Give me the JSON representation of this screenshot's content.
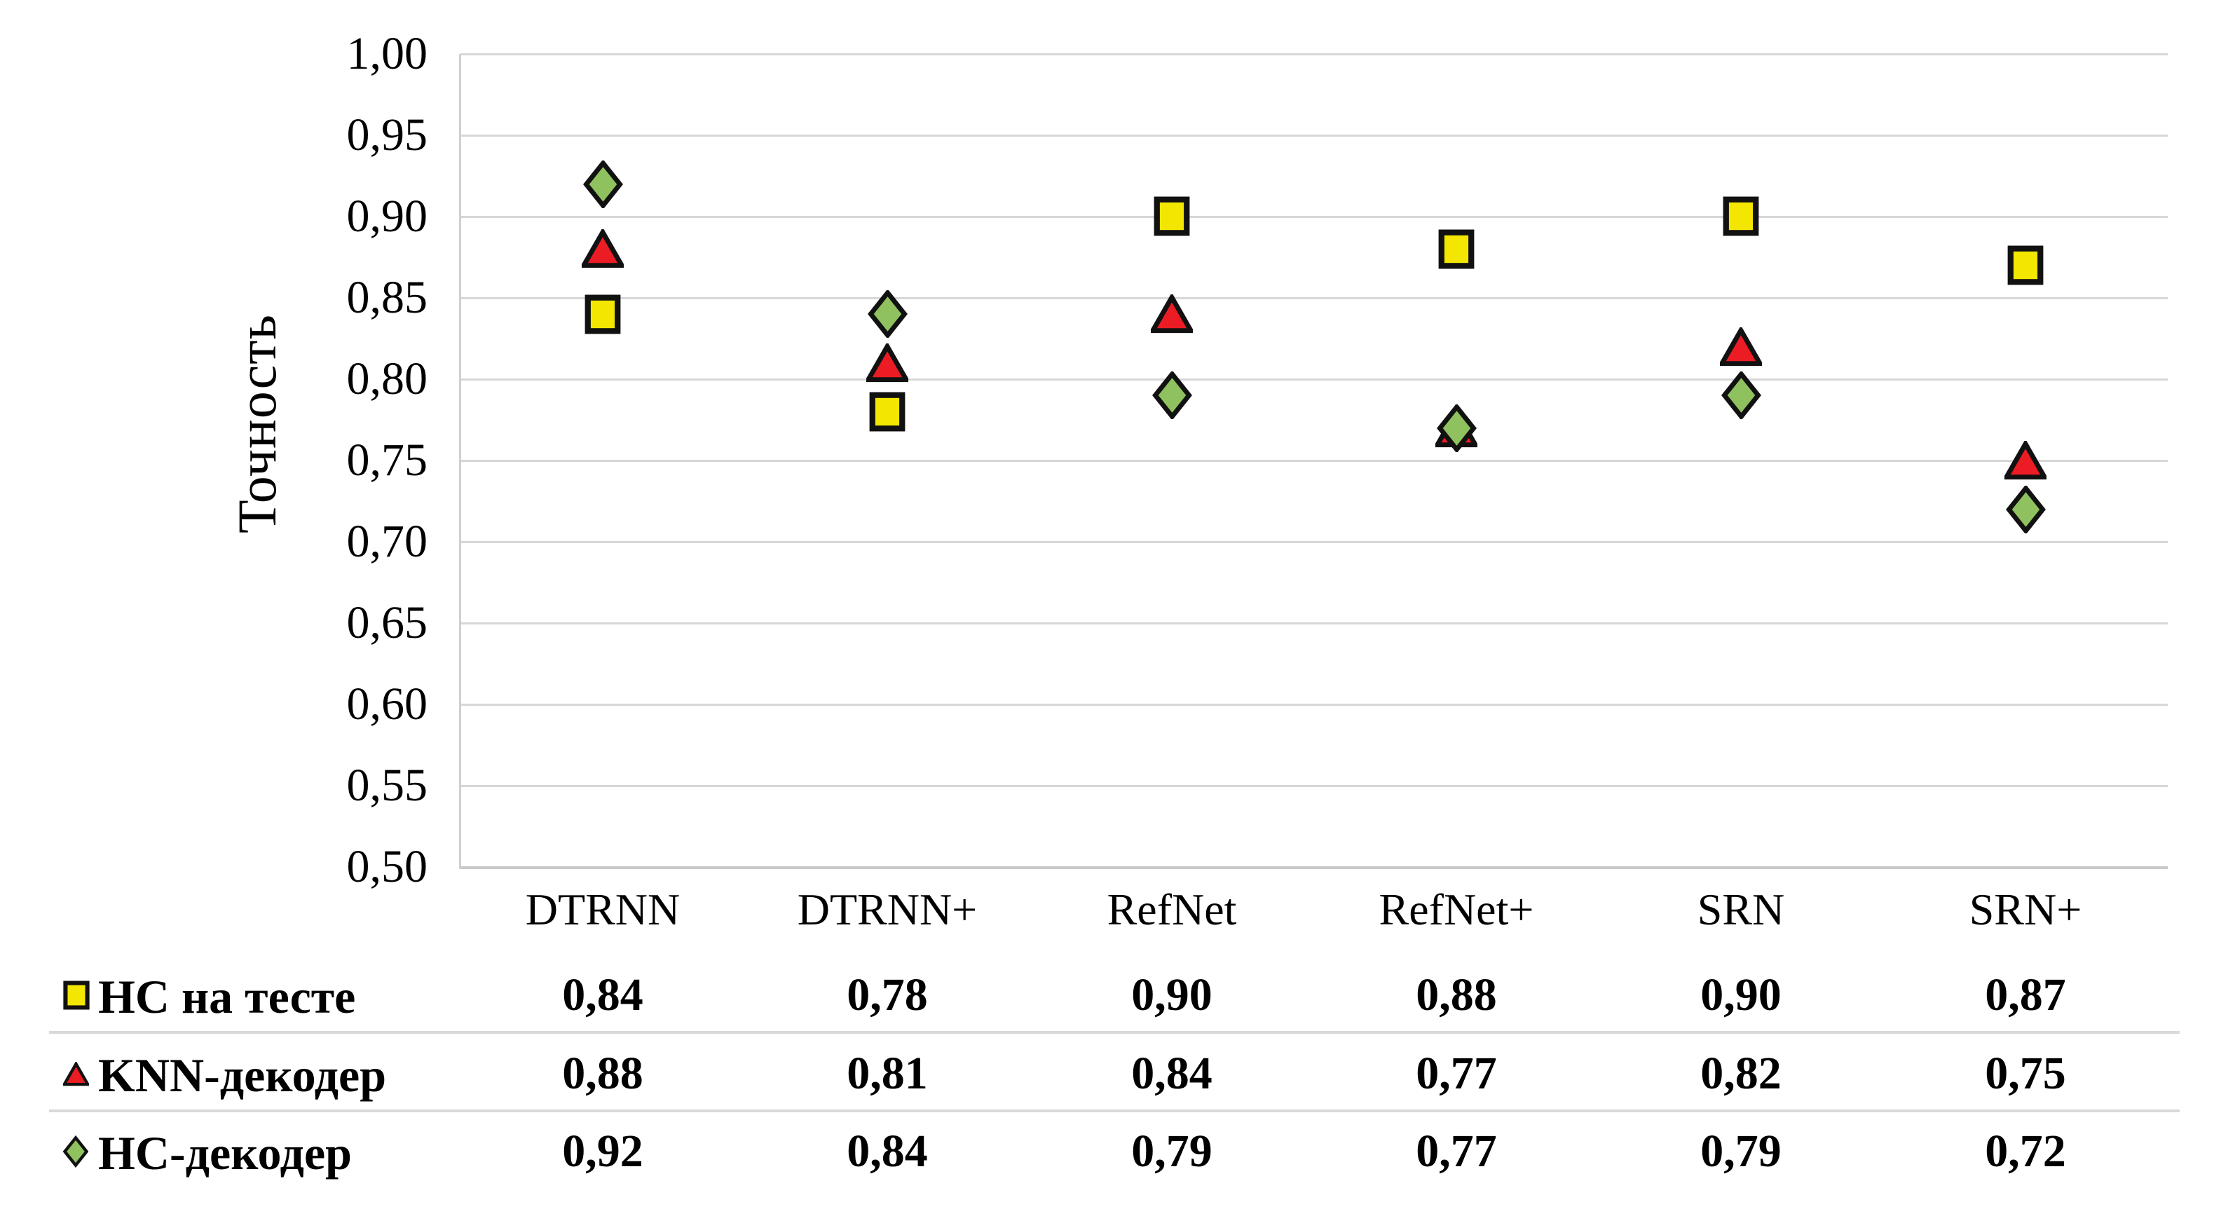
{
  "chart_data": {
    "type": "scatter",
    "title": "",
    "xlabel": "",
    "ylabel": "Точность",
    "categories": [
      "DTRNN",
      "DTRNN+",
      "RefNet",
      "RefNet+",
      "SRN",
      "SRN+"
    ],
    "series": [
      {
        "name": "НС на тесте",
        "marker": "square",
        "color": "#f3e600",
        "values": [
          0.84,
          0.78,
          0.9,
          0.88,
          0.9,
          0.87
        ],
        "display": [
          "0,84",
          "0,78",
          "0,90",
          "0,88",
          "0,90",
          "0,87"
        ]
      },
      {
        "name": "KNN-декодер",
        "marker": "triangle",
        "color": "#ec1c24",
        "values": [
          0.88,
          0.81,
          0.84,
          0.77,
          0.82,
          0.75
        ],
        "display": [
          "0,88",
          "0,81",
          "0,84",
          "0,77",
          "0,82",
          "0,75"
        ]
      },
      {
        "name": "НС-декодер",
        "marker": "diamond",
        "color": "#8fc15e",
        "values": [
          0.92,
          0.84,
          0.79,
          0.77,
          0.79,
          0.72
        ],
        "display": [
          "0,92",
          "0,84",
          "0,79",
          "0,77",
          "0,79",
          "0,72"
        ]
      }
    ],
    "ylim": [
      0.5,
      1.0
    ],
    "ytick_step": 0.05,
    "ytick_labels": [
      "1,00",
      "0,95",
      "0,90",
      "0,85",
      "0,80",
      "0,75",
      "0,70",
      "0,65",
      "0,60",
      "0,55",
      "0,50"
    ],
    "grid": true,
    "gridline_color": "#d7d7d7",
    "marker_stroke": "#111111",
    "legend_position": "table-left"
  }
}
